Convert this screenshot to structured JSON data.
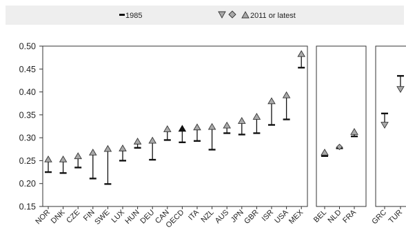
{
  "legend": {
    "item_1985": "1985",
    "item_2011": "2011 or latest"
  },
  "chart_data": {
    "type": "scatter",
    "title": "",
    "xlabel": "",
    "ylabel": "",
    "ylim": [
      0.15,
      0.5
    ],
    "yticks": [
      "0.50",
      "0.45",
      "0.40",
      "0.35",
      "0.30",
      "0.25",
      "0.20",
      "0.15"
    ],
    "legend_position": "top",
    "grid": false,
    "series": [
      {
        "name": "1985",
        "marker": "bar"
      },
      {
        "name": "2011 or latest",
        "marker": "triangle"
      }
    ],
    "panels": [
      {
        "categories": [
          "NOR",
          "DNK",
          "CZE",
          "FIN",
          "SWE",
          "LUX",
          "HUN",
          "DEU",
          "CAN",
          "OECD",
          "ITA",
          "NZL",
          "AUS",
          "JPN",
          "GBR",
          "ISR",
          "USA",
          "MEX"
        ],
        "y1985": [
          0.225,
          0.223,
          0.235,
          0.211,
          0.199,
          0.25,
          0.278,
          0.252,
          0.295,
          0.29,
          0.293,
          0.274,
          0.31,
          0.307,
          0.31,
          0.328,
          0.34,
          0.453
        ],
        "y2011": [
          0.249,
          0.249,
          0.256,
          0.264,
          0.272,
          0.273,
          0.288,
          0.29,
          0.315,
          0.316,
          0.319,
          0.32,
          0.323,
          0.333,
          0.342,
          0.376,
          0.389,
          0.479
        ],
        "direction": [
          "up",
          "up",
          "up",
          "up",
          "up",
          "up",
          "up",
          "up",
          "up",
          "up",
          "up",
          "up",
          "up",
          "up",
          "up",
          "up",
          "up",
          "up"
        ]
      },
      {
        "categories": [
          "BEL",
          "NLD",
          "FRA"
        ],
        "y1985": [
          0.26,
          0.277,
          0.303
        ],
        "y2011": [
          0.264,
          0.28,
          0.309
        ],
        "direction": [
          "up",
          "flat",
          "up"
        ]
      },
      {
        "categories": [
          "GRC",
          "TUR"
        ],
        "y1985": [
          0.353,
          0.435
        ],
        "y2011": [
          0.332,
          0.41
        ],
        "direction": [
          "down",
          "down"
        ]
      }
    ],
    "colors": {
      "marker_fill": "#a9a9a9",
      "marker_stroke": "#333333",
      "legend_bg": "#eeeeee"
    }
  }
}
